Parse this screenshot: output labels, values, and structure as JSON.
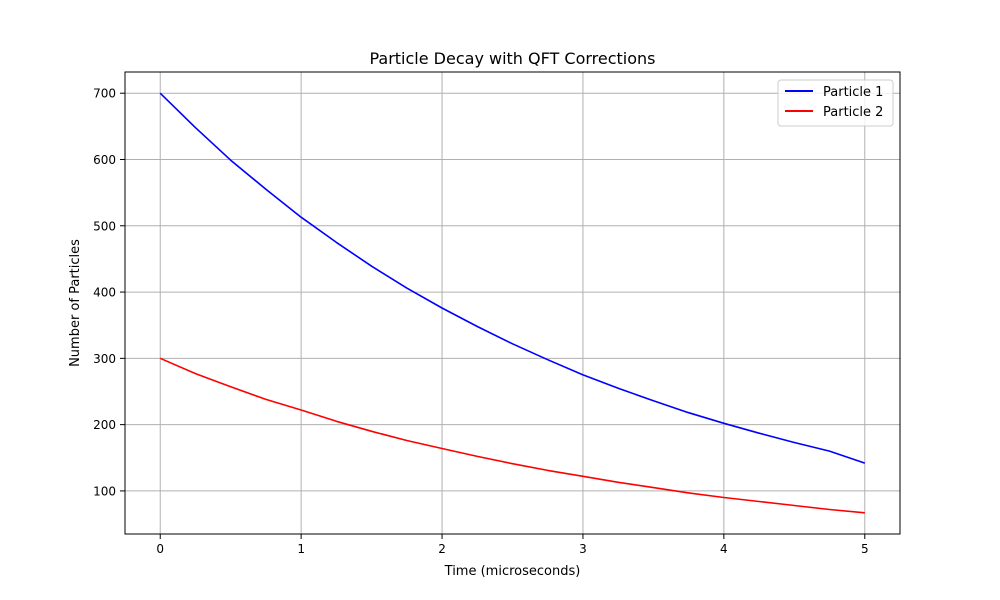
{
  "chart_data": {
    "type": "line",
    "title": "Particle Decay with QFT Corrections",
    "xlabel": "Time (microseconds)",
    "ylabel": "Number of Particles",
    "xlim": [
      -0.25,
      5.25
    ],
    "ylim": [
      35,
      732
    ],
    "xticks": [
      0,
      1,
      2,
      3,
      4,
      5
    ],
    "yticks": [
      100,
      200,
      300,
      400,
      500,
      600,
      700
    ],
    "grid": true,
    "legend_position": "top-right",
    "x": [
      0,
      0.25,
      0.5,
      0.75,
      1,
      1.25,
      1.5,
      1.75,
      2,
      2.25,
      2.5,
      2.75,
      3,
      3.25,
      3.5,
      3.75,
      4,
      4.25,
      4.5,
      4.75,
      5
    ],
    "series": [
      {
        "name": "Particle 1",
        "color": "#0000ff",
        "values": [
          700,
          648,
          599,
          555,
          513,
          475,
          439,
          406,
          376,
          348,
          322,
          298,
          275,
          255,
          236,
          218,
          202,
          187,
          173,
          160,
          142
        ]
      },
      {
        "name": "Particle 2",
        "color": "#ff0000",
        "values": [
          300,
          277,
          257,
          238,
          222,
          205,
          190,
          176,
          164,
          152,
          141,
          131,
          122,
          113,
          105,
          97,
          90,
          84,
          78,
          72,
          67
        ]
      }
    ]
  }
}
